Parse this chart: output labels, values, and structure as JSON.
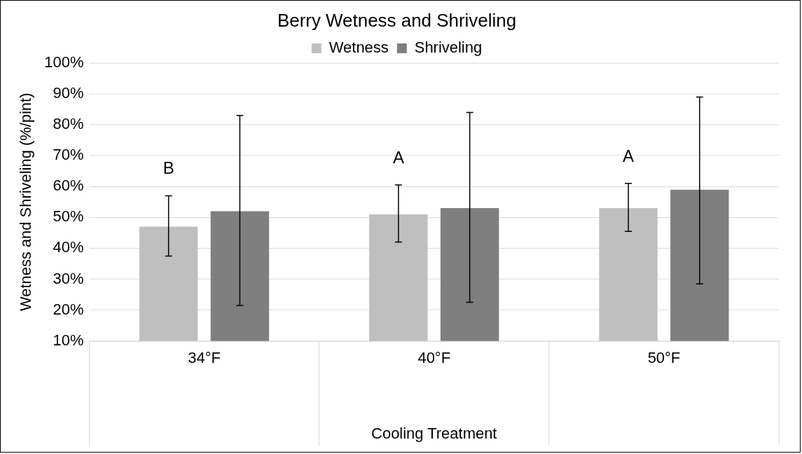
{
  "chart_data": {
    "type": "bar",
    "title": "Berry Wetness and Shriveling",
    "xlabel": "Cooling Treatment",
    "ylabel": "Wetness and Shriveling (%/pint)",
    "categories": [
      "34°F",
      "40°F",
      "50°F"
    ],
    "series": [
      {
        "name": "Wetness",
        "color": "#bfbfbf",
        "values": [
          47,
          51,
          53
        ],
        "errors": [
          [
            37.5,
            57
          ],
          [
            42,
            60.5
          ],
          [
            45.5,
            61
          ]
        ]
      },
      {
        "name": "Shriveling",
        "color": "#7f7f7f",
        "values": [
          52,
          53,
          59
        ],
        "errors": [
          [
            21.5,
            83
          ],
          [
            22.5,
            84
          ],
          [
            28.5,
            89
          ]
        ]
      }
    ],
    "ylim": [
      10,
      100
    ],
    "yticks": [
      {
        "value": 10,
        "label": "10%"
      },
      {
        "value": 20,
        "label": "20%"
      },
      {
        "value": 30,
        "label": "30%"
      },
      {
        "value": 40,
        "label": "40%"
      },
      {
        "value": 50,
        "label": "50%"
      },
      {
        "value": 60,
        "label": "60%"
      },
      {
        "value": 70,
        "label": "70%"
      },
      {
        "value": 80,
        "label": "80%"
      },
      {
        "value": 90,
        "label": "90%"
      },
      {
        "value": 100,
        "label": "100%"
      }
    ],
    "grid": "y",
    "legend": "top",
    "annotations": [
      "B",
      "A",
      "A"
    ]
  }
}
